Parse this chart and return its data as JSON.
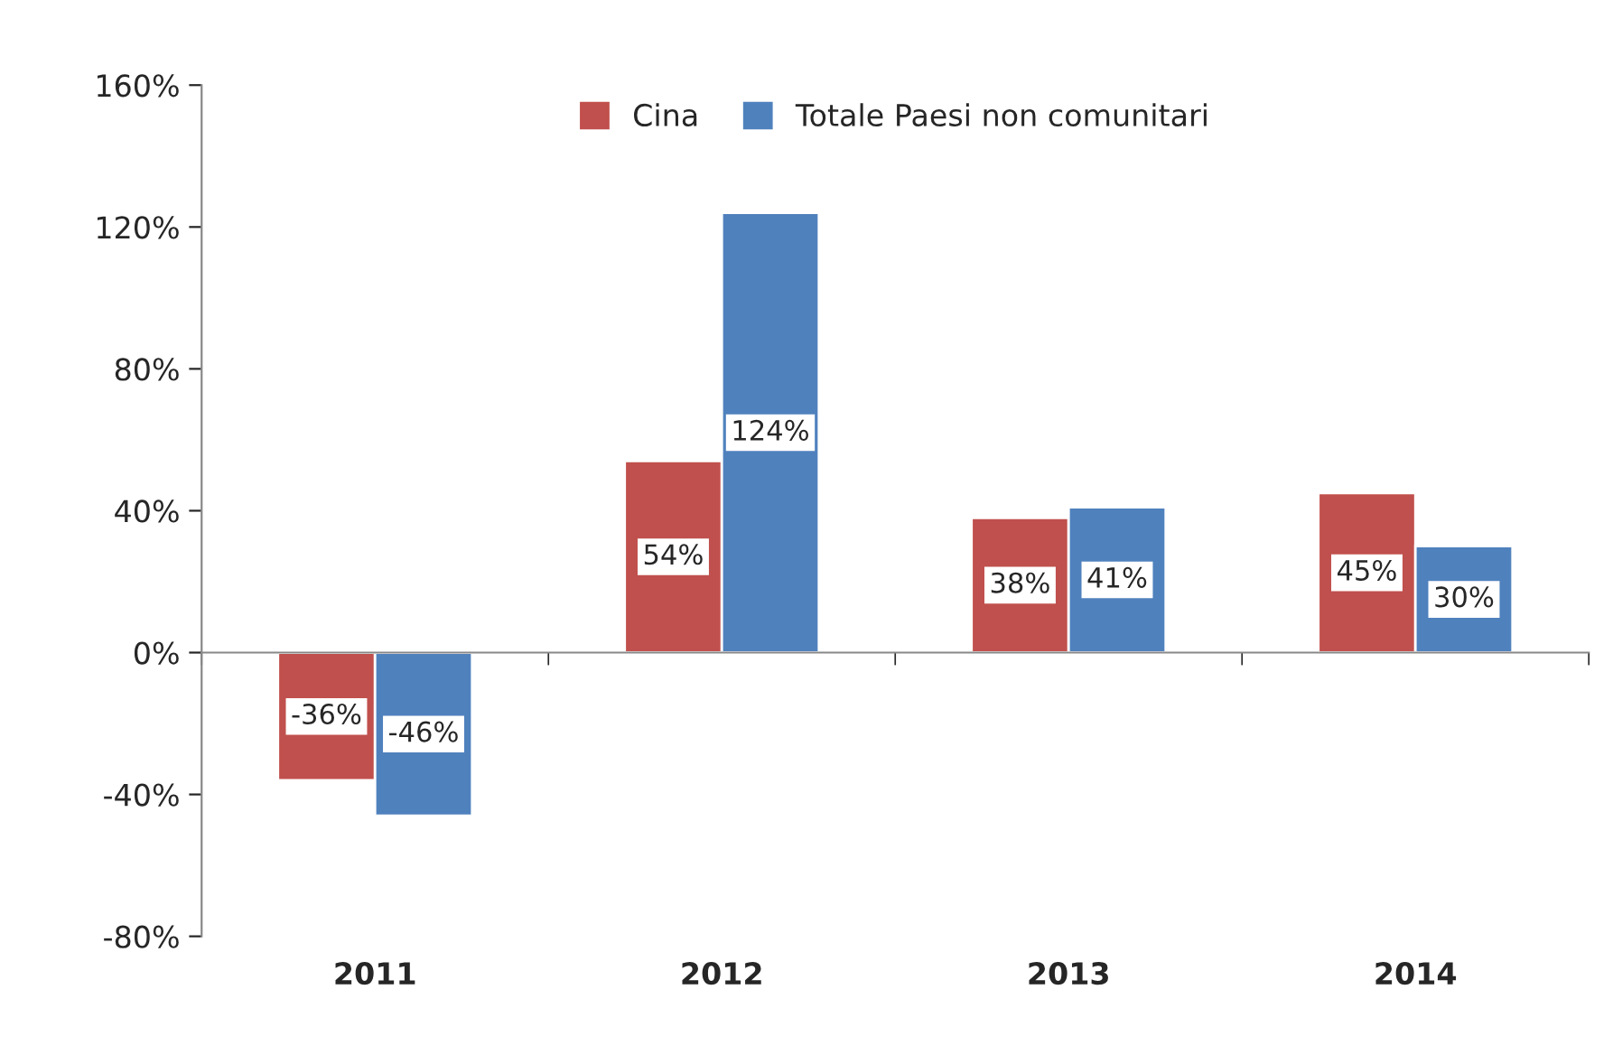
{
  "chart_data": {
    "type": "bar",
    "categories": [
      "2011",
      "2012",
      "2013",
      "2014"
    ],
    "series": [
      {
        "name": "Cina",
        "color": "#c0504d",
        "values": [
          -36,
          54,
          38,
          45
        ],
        "value_labels": [
          "-36%",
          "54%",
          "38%",
          "45%"
        ]
      },
      {
        "name": "Totale Paesi non comunitari",
        "color": "#4f81bd",
        "values": [
          -46,
          124,
          41,
          30
        ],
        "value_labels": [
          "-46%",
          "124%",
          "41%",
          "30%"
        ]
      }
    ],
    "ylim": [
      -80,
      160
    ],
    "yticks": [
      {
        "value": -80,
        "label": "-80%"
      },
      {
        "value": -40,
        "label": "-40%"
      },
      {
        "value": 0,
        "label": "0%"
      },
      {
        "value": 40,
        "label": "40%"
      },
      {
        "value": 80,
        "label": "80%"
      },
      {
        "value": 120,
        "label": "120%"
      },
      {
        "value": 160,
        "label": "160%"
      }
    ],
    "legend": "top"
  }
}
